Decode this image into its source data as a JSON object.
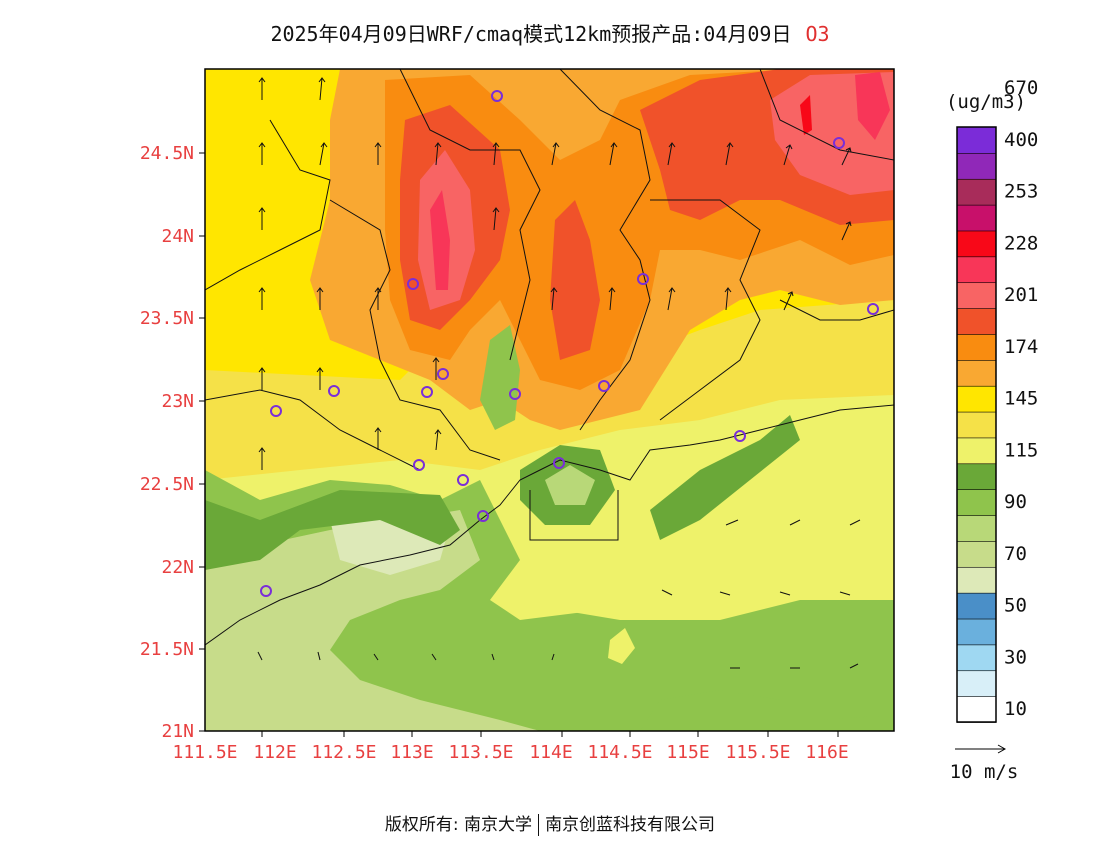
{
  "header": {
    "title": "2025年04月09日WRF/cmaq模式12km预报产品:04月09日",
    "pollutant": "O3"
  },
  "map": {
    "lat_labels": [
      "24.5N",
      "24N",
      "23.5N",
      "23N",
      "22.5N",
      "22N",
      "21.5N",
      "21N"
    ],
    "lon_labels": [
      "111.5E",
      "112E",
      "112.5E",
      "113E",
      "113.5E",
      "114E",
      "114.5E",
      "115E",
      "115.5E",
      "116E"
    ]
  },
  "colorbar": {
    "unit": "(ug/m3)",
    "colors": [
      "#ffffff",
      "#d8eff8",
      "#9fd8f2",
      "#6ab0dd",
      "#4a8fc8",
      "#dde9b8",
      "#c7dc8a",
      "#b8d878",
      "#8fc44c",
      "#6aa838",
      "#eef26a",
      "#f5e148",
      "#ffe600",
      "#f9a832",
      "#f98c10",
      "#f0522a",
      "#f86464",
      "#f83658",
      "#f80818",
      "#c8106a",
      "#a82c5a",
      "#9028b8",
      "#7b2cd8"
    ],
    "labels": [
      "10",
      "30",
      "50",
      "70",
      "90",
      "115",
      "145",
      "174",
      "201",
      "228",
      "253",
      "400",
      "670"
    ]
  },
  "wind_legend": {
    "label": "10 m/s"
  },
  "footer": {
    "copyright_left": "版权所有: 南京大学",
    "copyright_right": "南京创蓝科技有限公司"
  }
}
